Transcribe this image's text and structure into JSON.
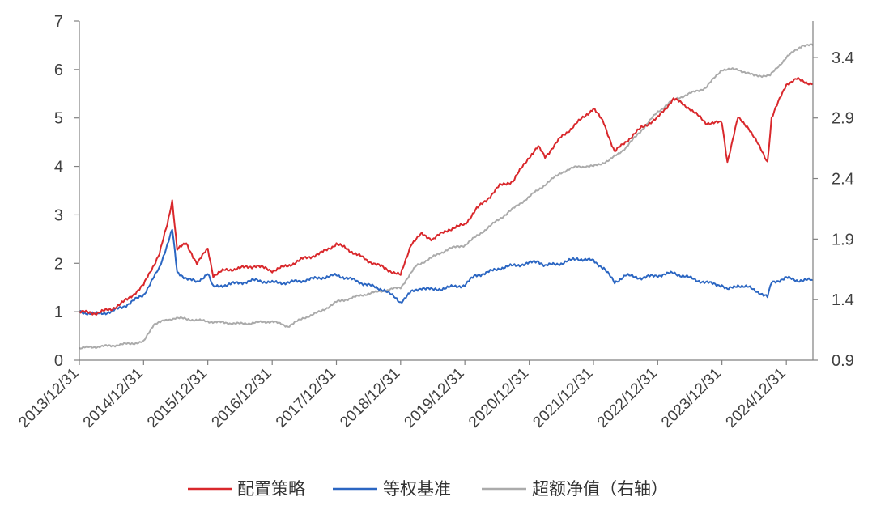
{
  "chart_data": {
    "type": "line",
    "title": "",
    "x_tick_labels": [
      "2013/12/31",
      "2014/12/31",
      "2015/12/31",
      "2016/12/31",
      "2017/12/31",
      "2018/12/31",
      "2019/12/31",
      "2020/12/31",
      "2021/12/31",
      "2022/12/31",
      "2023/12/31",
      "2024/12/31"
    ],
    "x_range": [
      "2013-12-31",
      "2025-05-31"
    ],
    "y_left": {
      "range": [
        0,
        7
      ],
      "ticks": [
        "0",
        "1",
        "2",
        "3",
        "4",
        "5",
        "6",
        "7"
      ]
    },
    "y_right": {
      "range": [
        0.9,
        3.7
      ],
      "ticks": [
        "0.9",
        "1.4",
        "1.9",
        "2.4",
        "2.9",
        "3.4"
      ]
    },
    "grid": false,
    "legend_position": "bottom",
    "series": [
      {
        "name": "配置策略",
        "axis": "left",
        "color": "#d9282c",
        "x": [
          "2013-12-31",
          "2014-03-31",
          "2014-06-30",
          "2014-09-30",
          "2014-12-31",
          "2015-03-31",
          "2015-05-15",
          "2015-06-12",
          "2015-07-10",
          "2015-08-31",
          "2015-10-31",
          "2015-12-31",
          "2016-01-31",
          "2016-03-31",
          "2016-06-30",
          "2016-09-30",
          "2016-12-31",
          "2017-03-31",
          "2017-06-30",
          "2017-09-30",
          "2017-12-31",
          "2018-02-28",
          "2018-06-30",
          "2018-09-30",
          "2018-12-31",
          "2019-02-28",
          "2019-04-30",
          "2019-06-30",
          "2019-09-30",
          "2019-12-31",
          "2020-02-29",
          "2020-04-30",
          "2020-07-15",
          "2020-09-30",
          "2020-12-31",
          "2021-02-20",
          "2021-03-31",
          "2021-06-30",
          "2021-09-30",
          "2021-12-31",
          "2022-02-28",
          "2022-04-30",
          "2022-06-30",
          "2022-09-30",
          "2022-12-31",
          "2023-03-31",
          "2023-06-30",
          "2023-09-30",
          "2023-12-31",
          "2024-01-31",
          "2024-03-31",
          "2024-05-31",
          "2024-07-31",
          "2024-09-15",
          "2024-10-08",
          "2024-12-31",
          "2025-02-28",
          "2025-05-31"
        ],
        "values": [
          1.0,
          0.97,
          1.05,
          1.25,
          1.55,
          2.2,
          2.8,
          3.3,
          2.3,
          2.4,
          2.0,
          2.3,
          1.75,
          1.85,
          1.9,
          1.95,
          1.85,
          1.95,
          2.1,
          2.2,
          2.4,
          2.3,
          2.05,
          1.9,
          1.75,
          2.4,
          2.6,
          2.5,
          2.7,
          2.8,
          3.1,
          3.3,
          3.6,
          3.7,
          4.2,
          4.4,
          4.2,
          4.6,
          4.9,
          5.2,
          4.9,
          4.3,
          4.5,
          4.8,
          5.0,
          5.4,
          5.2,
          4.9,
          4.9,
          4.1,
          5.0,
          4.8,
          4.4,
          4.1,
          5.0,
          5.7,
          5.8,
          5.7
        ]
      },
      {
        "name": "等权基准",
        "axis": "left",
        "color": "#2b66c2",
        "x": [
          "2013-12-31",
          "2014-03-31",
          "2014-06-30",
          "2014-09-30",
          "2014-12-31",
          "2015-03-31",
          "2015-05-15",
          "2015-06-12",
          "2015-07-10",
          "2015-08-31",
          "2015-10-31",
          "2015-12-31",
          "2016-01-31",
          "2016-03-31",
          "2016-06-30",
          "2016-09-30",
          "2016-12-31",
          "2017-03-31",
          "2017-06-30",
          "2017-09-30",
          "2017-12-31",
          "2018-02-28",
          "2018-06-30",
          "2018-09-30",
          "2018-12-31",
          "2019-02-28",
          "2019-04-30",
          "2019-06-30",
          "2019-09-30",
          "2019-12-31",
          "2020-02-29",
          "2020-04-30",
          "2020-07-15",
          "2020-09-30",
          "2020-12-31",
          "2021-02-20",
          "2021-03-31",
          "2021-06-30",
          "2021-09-30",
          "2021-12-31",
          "2022-02-28",
          "2022-04-30",
          "2022-06-30",
          "2022-09-30",
          "2022-12-31",
          "2023-03-31",
          "2023-06-30",
          "2023-09-30",
          "2023-12-31",
          "2024-01-31",
          "2024-03-31",
          "2024-05-31",
          "2024-07-31",
          "2024-09-15",
          "2024-10-08",
          "2024-12-31",
          "2025-02-28",
          "2025-05-31"
        ],
        "values": [
          1.0,
          0.95,
          1.0,
          1.15,
          1.35,
          1.9,
          2.4,
          2.7,
          1.8,
          1.7,
          1.6,
          1.8,
          1.5,
          1.55,
          1.6,
          1.65,
          1.6,
          1.6,
          1.65,
          1.7,
          1.75,
          1.7,
          1.55,
          1.45,
          1.2,
          1.4,
          1.5,
          1.45,
          1.5,
          1.55,
          1.75,
          1.8,
          1.9,
          1.95,
          2.0,
          2.05,
          1.95,
          2.0,
          2.1,
          2.05,
          1.9,
          1.6,
          1.75,
          1.7,
          1.75,
          1.8,
          1.7,
          1.6,
          1.55,
          1.45,
          1.55,
          1.5,
          1.4,
          1.3,
          1.6,
          1.7,
          1.65,
          1.65
        ]
      },
      {
        "name": "超额净值（右轴）",
        "axis": "right",
        "color": "#ababab",
        "x": [
          "2013-12-31",
          "2014-06-30",
          "2014-12-31",
          "2015-02-28",
          "2015-06-30",
          "2015-12-31",
          "2016-06-30",
          "2016-12-31",
          "2017-03-31",
          "2017-06-30",
          "2017-09-30",
          "2017-12-31",
          "2018-06-30",
          "2018-12-31",
          "2019-03-31",
          "2019-06-30",
          "2019-09-30",
          "2019-12-31",
          "2020-03-31",
          "2020-06-30",
          "2020-09-30",
          "2020-12-31",
          "2021-03-31",
          "2021-06-30",
          "2021-09-30",
          "2021-12-31",
          "2022-03-31",
          "2022-06-30",
          "2022-09-30",
          "2022-12-31",
          "2023-03-31",
          "2023-06-30",
          "2023-09-30",
          "2023-12-31",
          "2024-03-31",
          "2024-06-30",
          "2024-09-30",
          "2024-12-31",
          "2025-03-31",
          "2025-05-31"
        ],
        "values": [
          1.0,
          1.02,
          1.05,
          1.2,
          1.25,
          1.22,
          1.2,
          1.22,
          1.18,
          1.25,
          1.3,
          1.38,
          1.45,
          1.5,
          1.68,
          1.75,
          1.82,
          1.85,
          1.95,
          2.05,
          2.15,
          2.25,
          2.35,
          2.45,
          2.5,
          2.5,
          2.55,
          2.65,
          2.8,
          2.95,
          3.05,
          3.1,
          3.15,
          3.3,
          3.3,
          3.25,
          3.25,
          3.4,
          3.5,
          3.5
        ]
      }
    ]
  },
  "legend": {
    "items": [
      {
        "label": "配置策略",
        "color": "#d9282c"
      },
      {
        "label": "等权基准",
        "color": "#2b66c2"
      },
      {
        "label": "超额净值（右轴）",
        "color": "#ababab"
      }
    ]
  }
}
